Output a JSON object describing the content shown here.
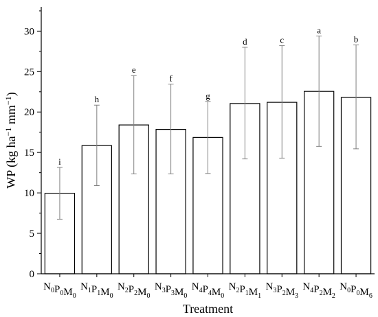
{
  "chart_data": {
    "type": "bar",
    "xlabel": "Treatment",
    "ylabel_parts": [
      "WP (kg ha",
      "−1",
      " mm",
      "−1",
      ")"
    ],
    "ylim": [
      0,
      33
    ],
    "yticks": [
      0,
      5,
      10,
      15,
      20,
      25,
      30
    ],
    "grid": false,
    "categories": [
      {
        "label": "N0P0M0",
        "parts": [
          [
            "N",
            "0"
          ],
          [
            "P",
            "0"
          ],
          [
            "M",
            "0"
          ]
        ]
      },
      {
        "label": "N1P1M0",
        "parts": [
          [
            "N",
            "1"
          ],
          [
            "P",
            "1"
          ],
          [
            "M",
            "0"
          ]
        ]
      },
      {
        "label": "N2P2M0",
        "parts": [
          [
            "N",
            "2"
          ],
          [
            "P",
            "2"
          ],
          [
            "M",
            "0"
          ]
        ]
      },
      {
        "label": "N3P3M0",
        "parts": [
          [
            "N",
            "3"
          ],
          [
            "P",
            "3"
          ],
          [
            "M",
            "0"
          ]
        ]
      },
      {
        "label": "N4P4M0",
        "parts": [
          [
            "N",
            "4"
          ],
          [
            "P",
            "4"
          ],
          [
            "M",
            "0"
          ]
        ]
      },
      {
        "label": "N2P1M1",
        "parts": [
          [
            "N",
            "2"
          ],
          [
            "P",
            "1"
          ],
          [
            "M",
            "1"
          ]
        ]
      },
      {
        "label": "N3P2M3",
        "parts": [
          [
            "N",
            "3"
          ],
          [
            "P",
            "2"
          ],
          [
            "M",
            "3"
          ]
        ]
      },
      {
        "label": "N4P2M2",
        "parts": [
          [
            "N",
            "4"
          ],
          [
            "P",
            "2"
          ],
          [
            "M",
            "2"
          ]
        ]
      },
      {
        "label": "N0P0M6",
        "parts": [
          [
            "N",
            "0"
          ],
          [
            "P",
            "0"
          ],
          [
            "M",
            "6"
          ]
        ]
      }
    ],
    "values": [
      9.95,
      15.85,
      18.4,
      17.85,
      16.85,
      21.05,
      21.2,
      22.55,
      21.8
    ],
    "error_low": [
      6.75,
      10.9,
      12.35,
      12.35,
      12.4,
      14.2,
      14.3,
      15.75,
      15.45
    ],
    "error_high": [
      13.15,
      20.85,
      24.5,
      23.45,
      21.3,
      28.0,
      28.2,
      29.4,
      28.3
    ],
    "letters": [
      "i",
      "h",
      "e",
      "f",
      "g",
      "d",
      "c",
      "a",
      "b"
    ],
    "colors": {
      "bar_fill": "#ffffff",
      "bar_stroke": "#000000",
      "error_bar": "#808080"
    }
  }
}
